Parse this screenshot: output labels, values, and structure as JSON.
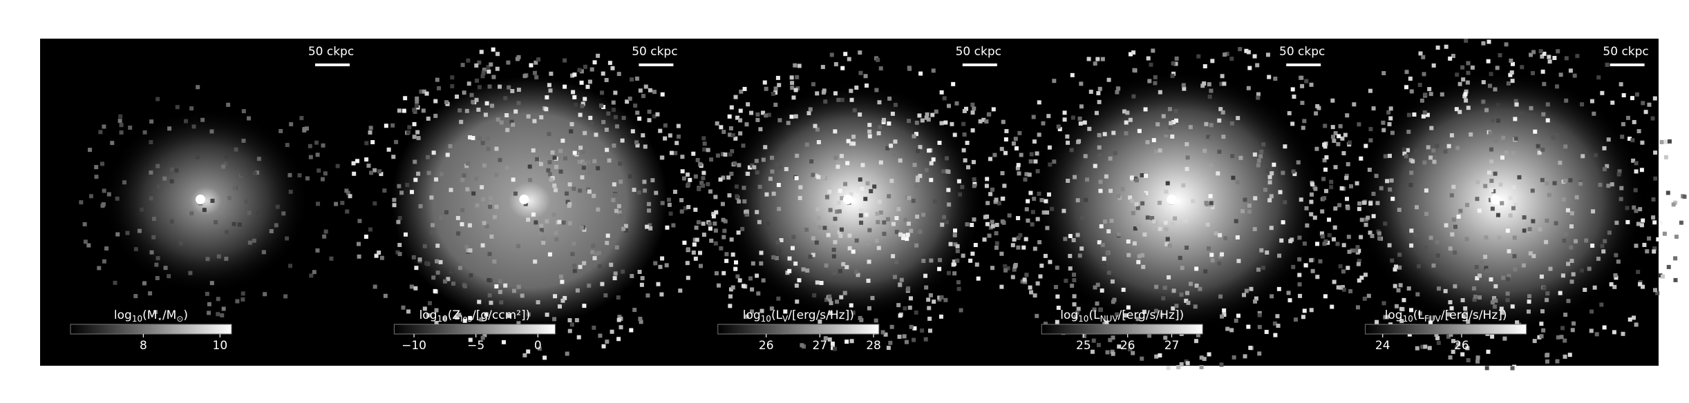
{
  "panels": [
    {
      "scale_label": "50 ckpc",
      "colorbar": {
        "label_parts": [
          "log",
          "10",
          "(M",
          "⋆",
          "/M",
          "⊙",
          ")"
        ],
        "lim": [
          6.1,
          10.3
        ],
        "ticks": [
          8,
          10
        ]
      }
    },
    {
      "scale_label": "50 ckpc",
      "colorbar": {
        "label_parts": [
          "log",
          "10",
          "(Z",
          "los",
          "/[g/ccm²])"
        ],
        "lim": [
          -11.6,
          1.4
        ],
        "ticks": [
          {
            "value": -10,
            "label": "−10"
          },
          {
            "value": -5,
            "label": "−5"
          },
          0
        ]
      }
    },
    {
      "scale_label": "50 ckpc",
      "colorbar": {
        "label_parts": [
          "log",
          "10",
          "(L",
          "V",
          "/[erg/s/Hz])"
        ],
        "lim": [
          25.1,
          28.1
        ],
        "ticks": [
          26,
          27,
          28
        ]
      }
    },
    {
      "scale_label": "50 ckpc",
      "colorbar": {
        "label_parts": [
          "log",
          "10",
          "(L",
          "NUV",
          "/[erg/s/Hz])"
        ],
        "lim": [
          24.05,
          27.7
        ],
        "ticks": [
          25,
          26,
          27
        ]
      }
    },
    {
      "scale_label": "50 ckpc",
      "colorbar": {
        "label_parts": [
          "log",
          "10",
          "(L",
          "FUV",
          "/[erg/s/Hz])"
        ],
        "lim": [
          23.56,
          27.64
        ],
        "ticks": [
          24,
          26
        ]
      }
    }
  ]
}
